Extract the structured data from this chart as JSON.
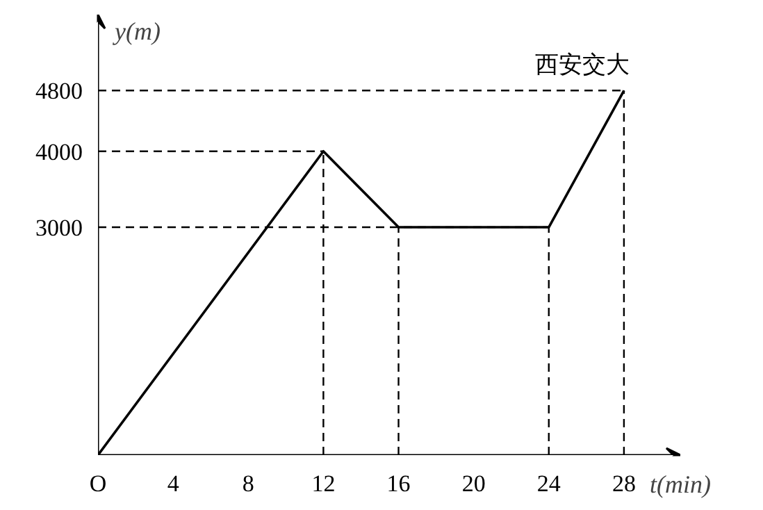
{
  "chart_data": {
    "type": "line",
    "xlabel": "t(min)",
    "ylabel": "y(m)",
    "x": [
      0,
      12,
      16,
      24,
      28
    ],
    "values": [
      0,
      4000,
      3000,
      3000,
      4800
    ],
    "color": "#000000",
    "xlim": [
      0,
      31
    ],
    "ylim": [
      0,
      5800
    ],
    "xticks": [
      {
        "value": 0,
        "label": "O"
      },
      4,
      8,
      12,
      16,
      20,
      24,
      28
    ],
    "yticks": [
      3000,
      4000,
      4800
    ],
    "marker": "none",
    "line_style": "solid",
    "ref_lines": [
      {
        "axis": "y",
        "value": 3000,
        "line_style": "dashed"
      },
      {
        "axis": "y",
        "value": 4000,
        "line_style": "dashed"
      },
      {
        "axis": "y",
        "value": 4800,
        "line_style": "dashed"
      },
      {
        "axis": "x",
        "value": 12,
        "line_style": "dashed"
      },
      {
        "axis": "x",
        "value": 16,
        "line_style": "dashed"
      },
      {
        "axis": "x",
        "value": 24,
        "line_style": "dashed"
      },
      {
        "axis": "x",
        "value": 28,
        "line_style": "dashed"
      }
    ],
    "annotations": [
      {
        "text": "西安交大",
        "x": 28,
        "y": 4800
      }
    ]
  }
}
